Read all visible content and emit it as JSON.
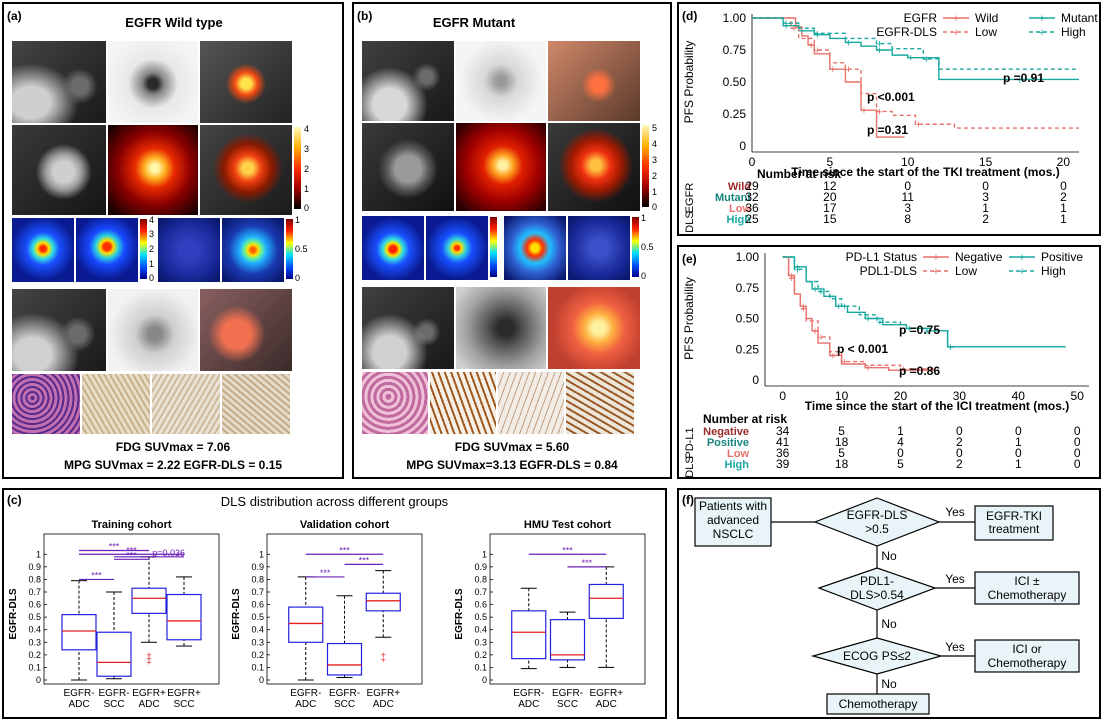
{
  "panel_a": {
    "label": "(a)",
    "title": "EGFR Wild type",
    "line1": "FDG SUVmax = 7.06",
    "line2": "MPG SUVmax = 2.22  EGFR-DLS = 0.15",
    "cbar1": [
      "4",
      "3",
      "2",
      "1",
      "0"
    ],
    "cbar2": [
      "4",
      "3",
      "2",
      "1",
      "0"
    ],
    "cbar3": [
      "1",
      "0.5",
      "0"
    ]
  },
  "panel_b": {
    "label": "(b)",
    "title": "EGFR Mutant",
    "line1": "FDG SUVmax = 5.60",
    "line2": "MPG SUVmax=3.13  EGFR-DLS = 0.84",
    "cbar1": [
      "5",
      "4",
      "3",
      "2",
      "1",
      "0"
    ],
    "cbar3": [
      "1",
      "0.5",
      "0"
    ]
  },
  "panel_c": {
    "label": "(c)",
    "title": "DLS distribution across different groups"
  },
  "panel_d": {
    "label": "(d)"
  },
  "panel_e": {
    "label": "(e)"
  },
  "panel_f": {
    "label": "(f)",
    "patients": "Patients with advanced NSCLC",
    "d1": "EGFR-DLS >0.5",
    "d2": "PDL1-DLS>0.54",
    "d3": "ECOG PS≤2",
    "r1": "EGFR-TKI treatment",
    "r2": "ICI ± Chemotherapy",
    "r3": "ICI or Chemotherapy",
    "chemo": "Chemotherapy",
    "yes": "Yes",
    "no": "No"
  },
  "chart_data": [
    {
      "type": "box",
      "title": "Training cohort",
      "ylabel": "EGFR-DLS",
      "ylim": [
        0,
        1
      ],
      "categories": [
        "EGFR- ADC",
        "EGFR- SCC",
        "EGFR+ ADC",
        "EGFR+ SCC"
      ],
      "stats": [
        {
          "min": 0.0,
          "q1": 0.24,
          "median": 0.39,
          "q3": 0.52,
          "max": 0.79,
          "outliers": []
        },
        {
          "min": 0.01,
          "q1": 0.03,
          "median": 0.14,
          "q3": 0.38,
          "max": 0.7,
          "outliers": []
        },
        {
          "min": 0.3,
          "q1": 0.53,
          "median": 0.65,
          "q3": 0.73,
          "max": 0.98,
          "outliers": [
            0.2,
            0.17,
            0.14
          ]
        },
        {
          "min": 0.27,
          "q1": 0.32,
          "median": 0.47,
          "q3": 0.68,
          "max": 0.82,
          "outliers": []
        }
      ],
      "annotations": [
        "***",
        "***",
        "***",
        "***",
        "p=0.036"
      ]
    },
    {
      "type": "box",
      "title": "Validation cohort",
      "ylabel": "EGFR-DLS",
      "ylim": [
        0,
        1
      ],
      "categories": [
        "EGFR- ADC",
        "EGFR- SCC",
        "EGFR+ ADC"
      ],
      "stats": [
        {
          "min": 0.0,
          "q1": 0.3,
          "median": 0.45,
          "q3": 0.58,
          "max": 0.82,
          "outliers": []
        },
        {
          "min": 0.02,
          "q1": 0.04,
          "median": 0.12,
          "q3": 0.29,
          "max": 0.67,
          "outliers": []
        },
        {
          "min": 0.34,
          "q1": 0.55,
          "median": 0.63,
          "q3": 0.69,
          "max": 0.87,
          "outliers": [
            0.2,
            0.16
          ]
        }
      ],
      "annotations": [
        "***",
        "***",
        "***"
      ]
    },
    {
      "type": "box",
      "title": "HMU Test cohort",
      "ylabel": "EGFR-DLS",
      "ylim": [
        0,
        1
      ],
      "categories": [
        "EGFR- ADC",
        "EGFR- SCC",
        "EGFR+ ADC"
      ],
      "stats": [
        {
          "min": 0.09,
          "q1": 0.17,
          "median": 0.38,
          "q3": 0.55,
          "max": 0.73,
          "outliers": []
        },
        {
          "min": 0.1,
          "q1": 0.16,
          "median": 0.2,
          "q3": 0.48,
          "max": 0.54,
          "outliers": []
        },
        {
          "min": 0.1,
          "q1": 0.49,
          "median": 0.65,
          "q3": 0.76,
          "max": 0.9,
          "outliers": []
        }
      ],
      "annotations": [
        "***",
        "***"
      ]
    },
    {
      "type": "line",
      "subtype": "kaplan-meier",
      "ylabel": "PFS Probability",
      "xlabel": "Time since the start of the TKI treatment (mos.)",
      "xlim": [
        0,
        21
      ],
      "ylim": [
        0,
        1
      ],
      "xticks": [
        0,
        5,
        10,
        15,
        20
      ],
      "yticks": [
        "0",
        "0.25",
        "0.50",
        "0.75",
        "1.00"
      ],
      "legend": {
        "row1_title": "EGFR",
        "row2_title": "EGFR-DLS",
        "names": [
          "Wild",
          "Mutant",
          "Low",
          "High"
        ]
      },
      "series": [
        {
          "name": "Wild",
          "color": "#e8716b",
          "dash": false,
          "x": [
            0,
            2.8,
            3.2,
            3.6,
            4,
            5,
            6,
            7,
            8,
            9.8
          ],
          "y": [
            1,
            0.93,
            0.86,
            0.79,
            0.72,
            0.6,
            0.5,
            0.28,
            0.07,
            0.07
          ]
        },
        {
          "name": "Mutant",
          "color": "#19a8a1",
          "dash": false,
          "x": [
            0,
            2,
            3,
            4,
            5,
            6,
            7,
            8,
            9,
            10,
            12,
            17,
            21
          ],
          "y": [
            1,
            0.94,
            0.9,
            0.87,
            0.84,
            0.81,
            0.78,
            0.75,
            0.71,
            0.69,
            0.52,
            0.52,
            0.52
          ]
        },
        {
          "name": "Low",
          "color": "#e8716b",
          "dash": true,
          "x": [
            0,
            2.5,
            3,
            4,
            5,
            6,
            7,
            8,
            9,
            10.5,
            13,
            21
          ],
          "y": [
            1,
            0.92,
            0.84,
            0.75,
            0.65,
            0.6,
            0.41,
            0.27,
            0.24,
            0.17,
            0.14,
            0.14
          ]
        },
        {
          "name": "High",
          "color": "#19a8a1",
          "dash": true,
          "x": [
            0,
            2,
            3,
            4,
            6,
            8,
            9,
            11,
            12,
            21
          ],
          "y": [
            1,
            0.96,
            0.92,
            0.88,
            0.84,
            0.8,
            0.76,
            0.68,
            0.6,
            0.6
          ]
        }
      ],
      "annotations": [
        "p <0.001",
        "p =0.31",
        "p =0.91"
      ],
      "risk_table": {
        "title": "Number at risk",
        "side_labels": [
          "EGFR",
          "DLS"
        ],
        "times": [
          0,
          5,
          10,
          15,
          20
        ],
        "rows": [
          {
            "name": "Wild",
            "values": [
              "29",
              "12",
              "0",
              "0",
              "0"
            ]
          },
          {
            "name": "Mutant",
            "values": [
              "32",
              "20",
              "11",
              "3",
              "2"
            ]
          },
          {
            "name": "Low",
            "values": [
              "36",
              "17",
              "3",
              "1",
              "1"
            ]
          },
          {
            "name": "High",
            "values": [
              "25",
              "15",
              "8",
              "2",
              "1"
            ]
          }
        ]
      }
    },
    {
      "type": "line",
      "subtype": "kaplan-meier",
      "ylabel": "PFS Probability",
      "xlabel": "Time since the start of the ICI treatment (mos.)",
      "xlim": [
        -3,
        52
      ],
      "ylim": [
        0,
        1
      ],
      "xticks": [
        0,
        10,
        20,
        30,
        40,
        50
      ],
      "yticks": [
        "0",
        "0.25",
        "0.50",
        "0.75",
        "1.00"
      ],
      "legend": {
        "row1_title": "PD-L1 Status",
        "row2_title": "PDL1-DLS",
        "names": [
          "Negative",
          "Positive",
          "Low",
          "High"
        ]
      },
      "series": [
        {
          "name": "Negative",
          "color": "#e8716b",
          "dash": false,
          "x": [
            0,
            1,
            2,
            3,
            4,
            5,
            6,
            8,
            10,
            14,
            18,
            26
          ],
          "y": [
            1,
            0.85,
            0.7,
            0.6,
            0.5,
            0.4,
            0.3,
            0.2,
            0.13,
            0.1,
            0.08,
            0.08
          ]
        },
        {
          "name": "Positive",
          "color": "#19a8a1",
          "dash": false,
          "x": [
            0,
            2,
            4,
            5,
            7,
            9,
            11,
            14,
            17,
            21,
            25,
            28,
            48
          ],
          "y": [
            1,
            0.92,
            0.8,
            0.74,
            0.68,
            0.6,
            0.55,
            0.5,
            0.45,
            0.42,
            0.4,
            0.27,
            0.27
          ]
        },
        {
          "name": "Low",
          "color": "#e8716b",
          "dash": true,
          "x": [
            0,
            1,
            2,
            3,
            4,
            6,
            8,
            10,
            14,
            20,
            26
          ],
          "y": [
            1,
            0.83,
            0.7,
            0.58,
            0.48,
            0.35,
            0.23,
            0.15,
            0.12,
            0.09,
            0.09
          ]
        },
        {
          "name": "High",
          "color": "#19a8a1",
          "dash": true,
          "x": [
            0,
            2,
            4,
            6,
            8,
            10,
            13,
            16,
            20,
            24,
            28,
            48
          ],
          "y": [
            1,
            0.9,
            0.8,
            0.72,
            0.66,
            0.6,
            0.53,
            0.47,
            0.42,
            0.4,
            0.27,
            0.27
          ]
        }
      ],
      "annotations": [
        "p =0.75",
        "p < 0.001",
        "p =0.86"
      ],
      "risk_table": {
        "title": "Number at risk",
        "side_labels": [
          "PD-L1",
          "DLS"
        ],
        "times": [
          0,
          10,
          20,
          30,
          40,
          50
        ],
        "rows": [
          {
            "name": "Negative",
            "values": [
              "34",
              "5",
              "1",
              "0",
              "0",
              "0"
            ]
          },
          {
            "name": "Positive",
            "values": [
              "41",
              "18",
              "4",
              "2",
              "1",
              "0"
            ]
          },
          {
            "name": "Low",
            "values": [
              "36",
              "5",
              "0",
              "0",
              "0",
              "0"
            ]
          },
          {
            "name": "High",
            "values": [
              "39",
              "18",
              "5",
              "2",
              "1",
              "0"
            ]
          }
        ]
      }
    }
  ]
}
